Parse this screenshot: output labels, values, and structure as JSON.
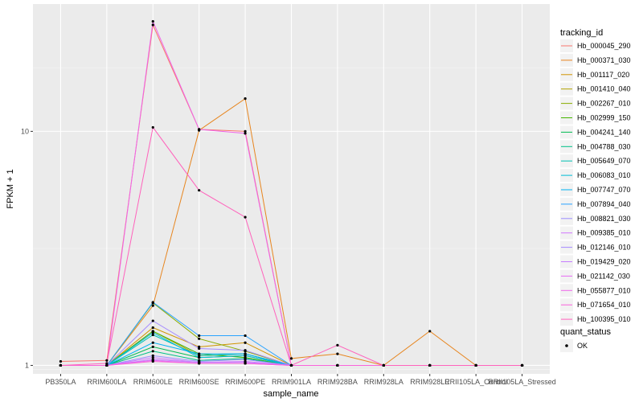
{
  "chart_data": {
    "type": "line",
    "title": "",
    "xlabel": "sample_name",
    "ylabel": "FPKM + 1",
    "y_scale": "log10",
    "ylim": [
      0.92,
      35
    ],
    "y_ticks": [
      1,
      10
    ],
    "grid": true,
    "legend_position": "right",
    "categories": [
      "PB350LA",
      "RRIM600LA",
      "RRIM600LE",
      "RRIM600SE",
      "RRIM600PE",
      "RRIM901LA",
      "RRIM928BA",
      "RRIM928LA",
      "RRIM928LE",
      "RRII105LA_Control",
      "RRII105LA_Stressed"
    ],
    "legend_title": "tracking_id",
    "series": [
      {
        "name": "Hb_000045_290",
        "color": "#F8766D",
        "values": [
          1.04,
          1.05,
          28.5,
          10.2,
          10.0,
          1.0,
          1.0,
          1.0,
          1.0,
          1.0,
          1.0
        ]
      },
      {
        "name": "Hb_000371_030",
        "color": "#E7851E",
        "values": [
          1.0,
          1.0,
          1.8,
          10.1,
          13.8,
          1.07,
          1.12,
          1.0,
          1.4,
          1.0,
          1.0
        ]
      },
      {
        "name": "Hb_001117_020",
        "color": "#D09400",
        "values": [
          1.0,
          1.0,
          1.45,
          1.2,
          1.25,
          1.0,
          1.0,
          1.0,
          1.0,
          1.0,
          1.0
        ]
      },
      {
        "name": "Hb_001410_040",
        "color": "#B2A100",
        "values": [
          1.0,
          1.0,
          1.4,
          1.1,
          1.12,
          1.0,
          1.0,
          1.0,
          1.0,
          1.0,
          1.0
        ]
      },
      {
        "name": "Hb_002267_010",
        "color": "#89AC00",
        "values": [
          1.0,
          1.0,
          1.85,
          1.3,
          1.15,
          1.0,
          1.0,
          1.0,
          1.0,
          1.0,
          1.0
        ]
      },
      {
        "name": "Hb_002999_150",
        "color": "#45B500",
        "values": [
          1.0,
          1.0,
          1.4,
          1.12,
          1.08,
          1.0,
          1.0,
          1.0,
          1.0,
          1.0,
          1.0
        ]
      },
      {
        "name": "Hb_004241_140",
        "color": "#00BC51",
        "values": [
          1.0,
          1.0,
          1.2,
          1.08,
          1.1,
          1.0,
          1.0,
          1.0,
          1.0,
          1.0,
          1.0
        ]
      },
      {
        "name": "Hb_004788_030",
        "color": "#00C087",
        "values": [
          1.0,
          1.0,
          1.15,
          1.05,
          1.07,
          1.0,
          1.0,
          1.0,
          1.0,
          1.0,
          1.0
        ]
      },
      {
        "name": "Hb_005649_070",
        "color": "#00C0B2",
        "values": [
          1.0,
          1.0,
          1.35,
          1.1,
          1.12,
          1.0,
          1.0,
          1.0,
          1.0,
          1.0,
          1.0
        ]
      },
      {
        "name": "Hb_006083_010",
        "color": "#00BCD6",
        "values": [
          1.0,
          1.0,
          1.38,
          1.08,
          1.1,
          1.0,
          1.0,
          1.0,
          1.0,
          1.0,
          1.0
        ]
      },
      {
        "name": "Hb_007747_070",
        "color": "#00B3F2",
        "values": [
          1.0,
          1.0,
          1.25,
          1.12,
          1.12,
          1.0,
          1.0,
          1.0,
          1.0,
          1.0,
          1.0
        ]
      },
      {
        "name": "Hb_007894_040",
        "color": "#29A3FF",
        "values": [
          1.0,
          1.0,
          1.86,
          1.34,
          1.34,
          1.0,
          1.0,
          1.0,
          1.0,
          1.0,
          1.0
        ]
      },
      {
        "name": "Hb_008821_030",
        "color": "#9C8DFF",
        "values": [
          1.0,
          1.0,
          1.1,
          1.04,
          1.06,
          1.0,
          1.0,
          1.0,
          1.0,
          1.0,
          1.0
        ]
      },
      {
        "name": "Hb_009385_010",
        "color": "#D277FF",
        "values": [
          1.0,
          1.0,
          1.08,
          1.03,
          1.04,
          1.0,
          1.0,
          1.0,
          1.0,
          1.0,
          1.0
        ]
      },
      {
        "name": "Hb_012146_010",
        "color": "#A58AFF",
        "values": [
          1.0,
          1.0,
          1.55,
          1.18,
          1.16,
          1.0,
          1.0,
          1.0,
          1.0,
          1.0,
          1.0
        ]
      },
      {
        "name": "Hb_019429_020",
        "color": "#C77CFF",
        "values": [
          1.0,
          1.0,
          1.06,
          1.03,
          1.03,
          1.0,
          1.0,
          1.0,
          1.0,
          1.0,
          1.0
        ]
      },
      {
        "name": "Hb_021142_030",
        "color": "#E76BF3",
        "values": [
          1.0,
          1.0,
          1.05,
          1.02,
          1.02,
          1.0,
          1.0,
          1.0,
          1.0,
          1.0,
          1.0
        ]
      },
      {
        "name": "Hb_055877_010",
        "color": "#F066EA",
        "values": [
          1.0,
          1.0,
          29.5,
          10.2,
          9.8,
          1.0,
          1.0,
          1.0,
          1.0,
          1.0,
          1.0
        ]
      },
      {
        "name": "Hb_071654_010",
        "color": "#FA62DB",
        "values": [
          1.0,
          1.0,
          1.04,
          1.02,
          1.02,
          1.0,
          1.0,
          1.0,
          1.0,
          1.0,
          1.0
        ]
      },
      {
        "name": "Hb_100395_010",
        "color": "#FF62BC",
        "values": [
          1.0,
          1.02,
          10.4,
          5.6,
          4.3,
          1.0,
          1.22,
          1.0,
          1.0,
          1.0,
          1.0
        ]
      }
    ],
    "quant_status_title": "quant_status",
    "quant_status_items": [
      {
        "label": "OK",
        "color": "#000000"
      }
    ]
  }
}
